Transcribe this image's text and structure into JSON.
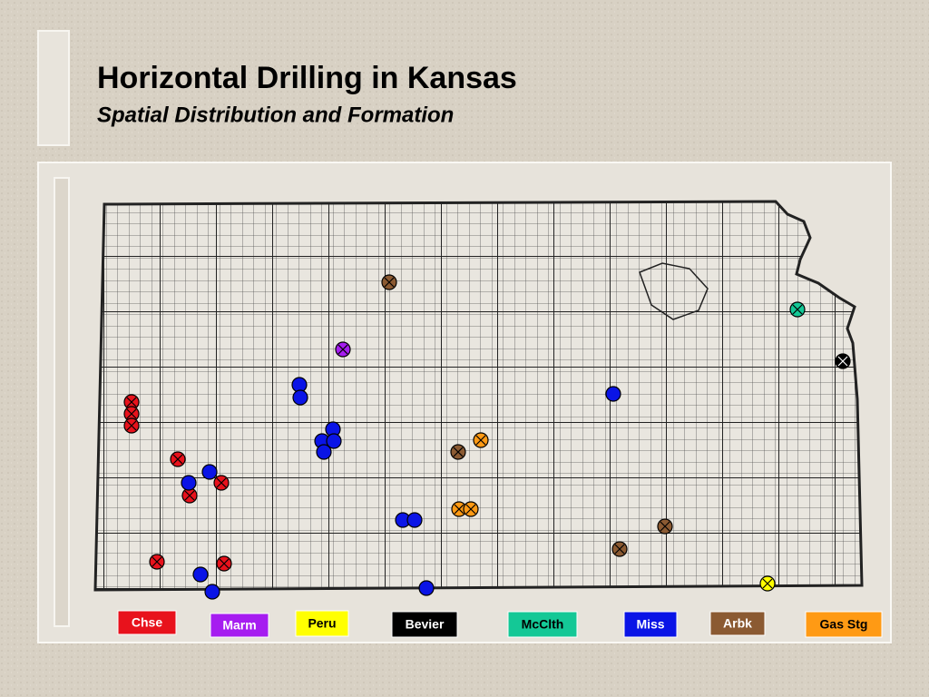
{
  "header": {
    "title": "Horizontal Drilling in Kansas",
    "subtitle": "Spatial Distribution and Formation"
  },
  "legend": [
    {
      "label": "Chse",
      "color": "#e8121c"
    },
    {
      "label": "Marm",
      "color": "#a61cf0"
    },
    {
      "label": "Peru",
      "color": "#ffff00"
    },
    {
      "label": "Bevier",
      "color": "#000000"
    },
    {
      "label": "McClth",
      "color": "#14c896"
    },
    {
      "label": "Miss",
      "color": "#0a14e6"
    },
    {
      "label": "Arbk",
      "color": "#8b5a32"
    },
    {
      "label": "Gas Stg",
      "color": "#ff9a14"
    }
  ]
}
